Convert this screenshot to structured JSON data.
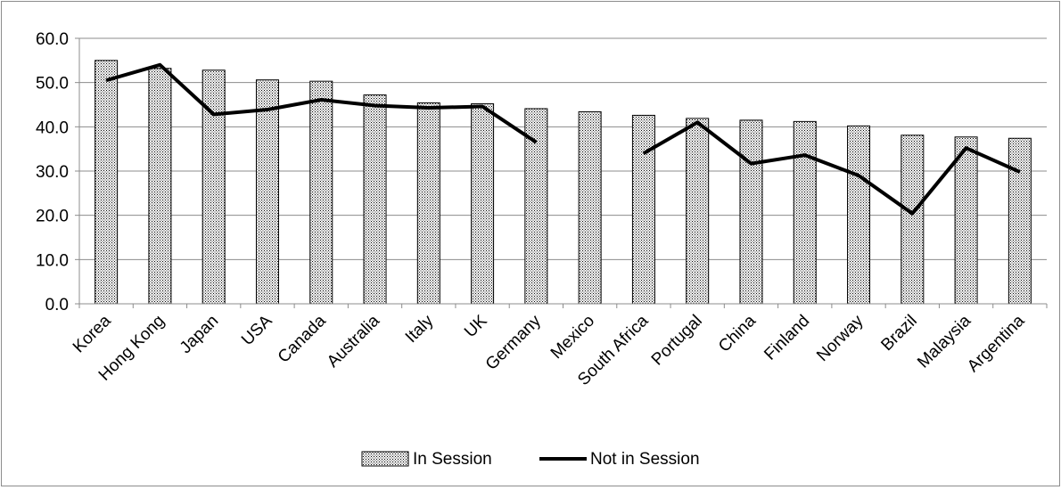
{
  "chart_data": {
    "type": "bar",
    "categories": [
      "Korea",
      "Hong Kong",
      "Japan",
      "USA",
      "Canada",
      "Australia",
      "Italy",
      "UK",
      "Germany",
      "Mexico",
      "South Africa",
      "Portugal",
      "China",
      "Finland",
      "Norway",
      "Brazil",
      "Malaysia",
      "Argentina"
    ],
    "series": [
      {
        "name": "In Session",
        "kind": "bar",
        "values": [
          55.0,
          53.2,
          52.8,
          50.6,
          50.3,
          47.2,
          45.4,
          45.2,
          44.1,
          43.4,
          42.6,
          41.9,
          41.5,
          41.2,
          40.2,
          38.1,
          37.7,
          37.4
        ]
      },
      {
        "name": "Not in Session",
        "kind": "line",
        "values": [
          50.5,
          54.0,
          42.8,
          43.9,
          46.1,
          44.8,
          44.3,
          44.6,
          36.5,
          null,
          34.0,
          41.0,
          31.7,
          33.6,
          29.0,
          20.4,
          35.2,
          29.8
        ]
      }
    ],
    "title": "",
    "xlabel": "",
    "ylabel": "",
    "ylim": [
      0,
      60
    ],
    "yticks": [
      "0.0",
      "10.0",
      "20.0",
      "30.0",
      "40.0",
      "50.0",
      "60.0"
    ],
    "grid": "horizontal",
    "legend_position": "bottom",
    "colors": {
      "bar_fill": "#d9d9d9",
      "bar_border": "#000000",
      "line": "#000000",
      "grid": "#8c8c8c"
    }
  }
}
